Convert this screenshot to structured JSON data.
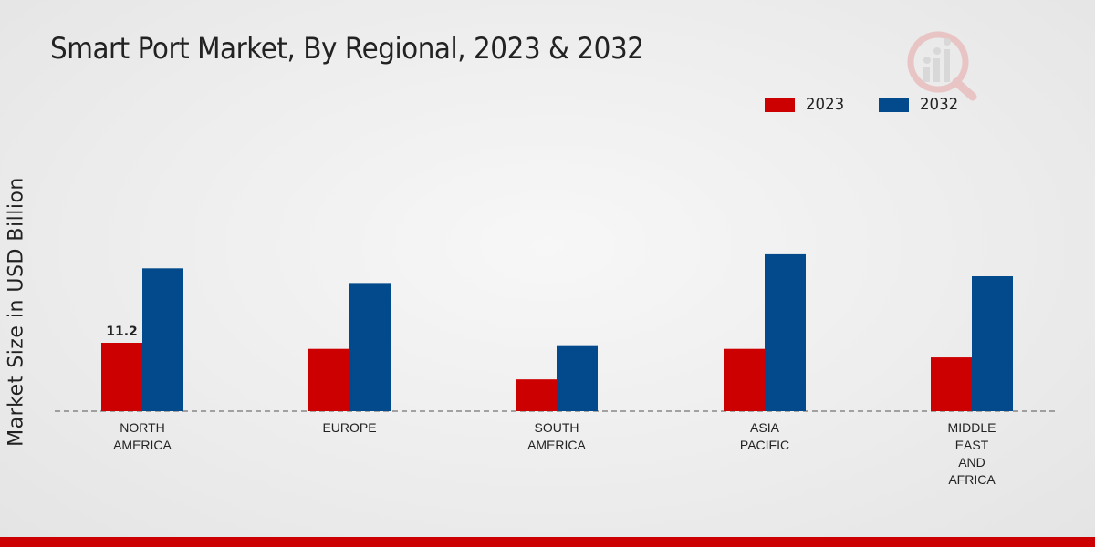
{
  "chart_data": {
    "type": "bar",
    "title": "Smart Port Market, By Regional, 2023 & 2032",
    "xlabel": "",
    "ylabel": "Market Size in USD Billion",
    "categories": [
      [
        "NORTH",
        "AMERICA"
      ],
      [
        "EUROPE"
      ],
      [
        "SOUTH",
        "AMERICA"
      ],
      [
        "ASIA",
        "PACIFIC"
      ],
      [
        "MIDDLE",
        "EAST",
        "AND",
        "AFRICA"
      ]
    ],
    "series": [
      {
        "name": "2023",
        "color": "#cc0000",
        "values": [
          11.2,
          10.2,
          5.2,
          10.2,
          8.8
        ]
      },
      {
        "name": "2032",
        "color": "#034a8c",
        "values": [
          23.4,
          21.0,
          10.8,
          25.7,
          22.1
        ]
      }
    ],
    "data_labels": [
      {
        "series": 0,
        "category": 0,
        "text": "11.2"
      }
    ],
    "ylim": [
      0,
      40
    ],
    "grid": false,
    "legend": "top-right"
  },
  "footer": {
    "accent_color": "#cc0000"
  }
}
